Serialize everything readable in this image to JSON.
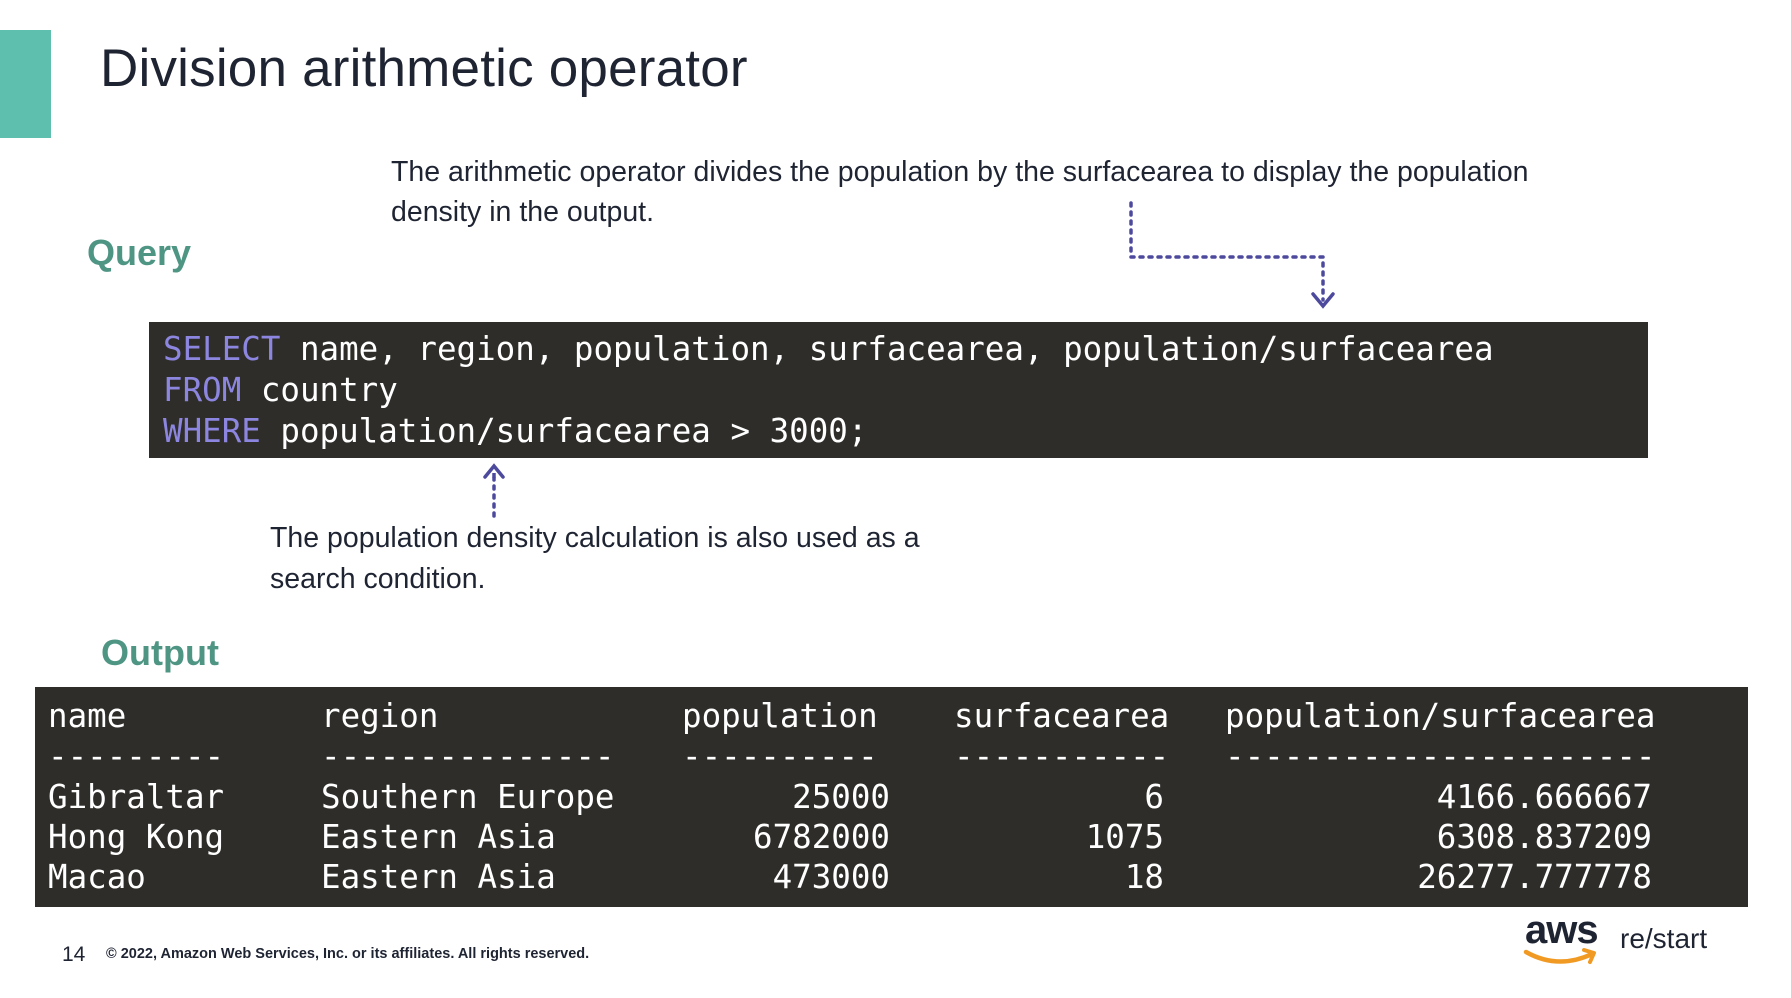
{
  "slide": {
    "title": "Division arithmetic operator",
    "page_number": "14",
    "copyright": "© 2022, Amazon Web Services, Inc. or its affiliates. All rights reserved."
  },
  "annotations": {
    "top": "The arithmetic operator divides the population by the surfacearea to display the population density in the output.",
    "bottom": "The population density calculation is also used as a search condition."
  },
  "query": {
    "heading": "Query",
    "lines": [
      {
        "keyword": "SELECT",
        "rest": " name, region, population, surfacearea, population/surfacearea"
      },
      {
        "keyword": "FROM",
        "rest": " country"
      },
      {
        "keyword": "WHERE",
        "rest": " population/surfacearea > 3000;"
      }
    ]
  },
  "output": {
    "heading": "Output",
    "columns": [
      "name",
      "region",
      "population",
      "surfacearea",
      "population/surfacearea"
    ],
    "separators": [
      "---------",
      "---------------",
      "----------",
      "-----------",
      "----------------------"
    ],
    "rows": [
      [
        "Gibraltar",
        "Southern Europe",
        "25000",
        "6",
        "4166.666667"
      ],
      [
        "Hong Kong",
        "Eastern Asia",
        "6782000",
        "1075",
        "6308.837209"
      ],
      [
        "Macao",
        "Eastern Asia",
        "473000",
        "18",
        "26277.777778"
      ]
    ]
  },
  "branding": {
    "logo_word": "aws",
    "logo_suffix": "re/start",
    "accent_color": "#5fbfae",
    "heading_color": "#4f9584",
    "keyword_color": "#8d86e0",
    "arrow_color": "#4d4a9e",
    "smile_color": "#f19a23"
  }
}
